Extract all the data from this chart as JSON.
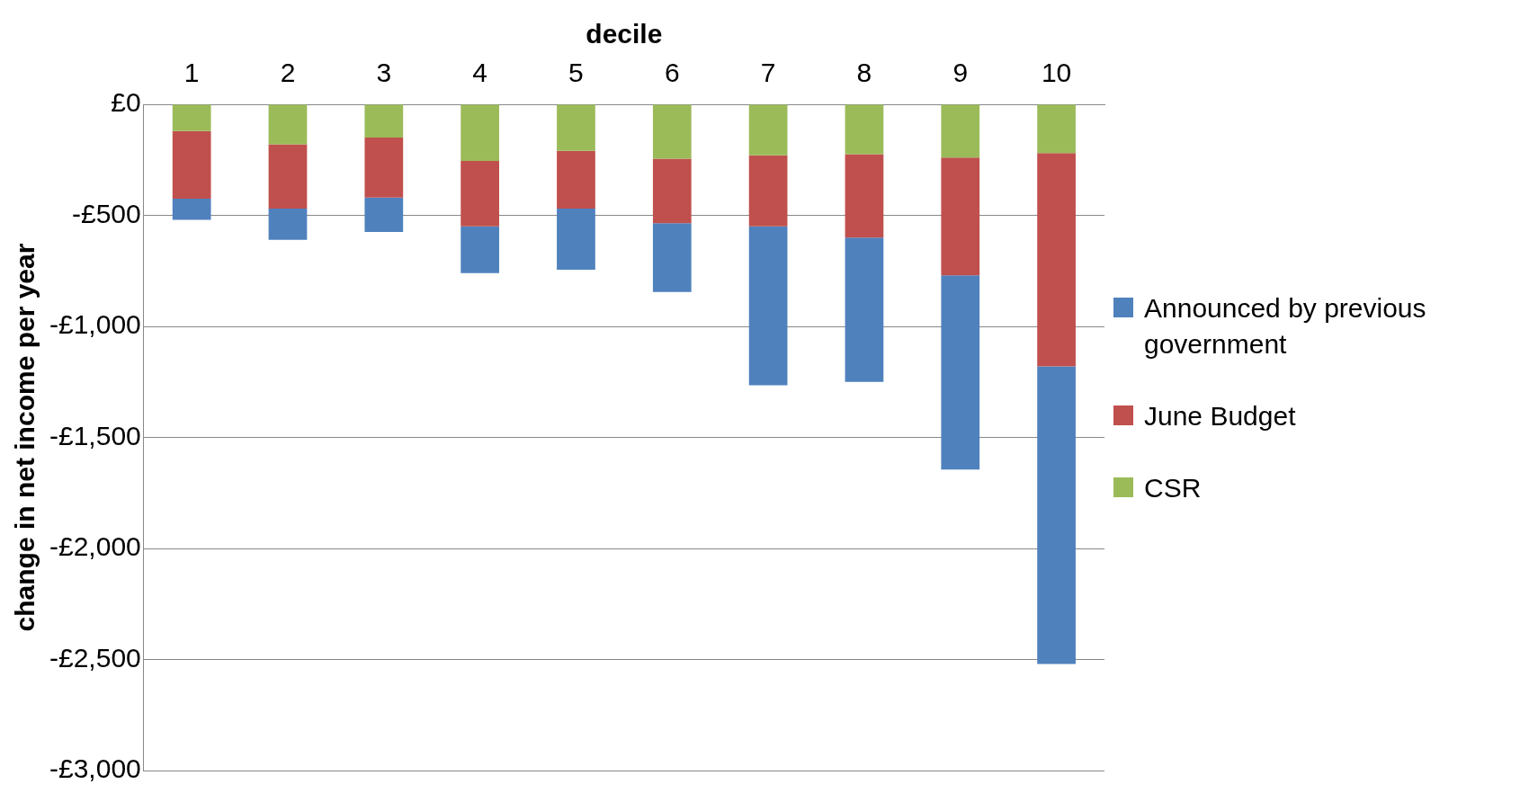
{
  "chart_data": {
    "type": "bar",
    "stacked": true,
    "xlabel": "decile",
    "ylabel": "change in net income per year",
    "categories": [
      "1",
      "2",
      "3",
      "4",
      "5",
      "6",
      "7",
      "8",
      "9",
      "10"
    ],
    "series": [
      {
        "name": "CSR",
        "color": "#9bbb59",
        "values": [
          -120,
          -180,
          -150,
          -255,
          -210,
          -245,
          -230,
          -225,
          -240,
          -220
        ]
      },
      {
        "name": "June Budget",
        "color": "#c0504d",
        "values": [
          -305,
          -290,
          -270,
          -295,
          -260,
          -290,
          -320,
          -375,
          -530,
          -960
        ]
      },
      {
        "name": "Announced by previous government",
        "color": "#4f81bd",
        "values": [
          -95,
          -140,
          -155,
          -210,
          -275,
          -310,
          -715,
          -650,
          -875,
          -1340
        ]
      }
    ],
    "ylim": [
      -3000,
      0
    ],
    "yticks": [
      {
        "value": 0,
        "label": "£0"
      },
      {
        "value": -500,
        "label": "-£500"
      },
      {
        "value": -1000,
        "label": "-£1,000"
      },
      {
        "value": -1500,
        "label": "-£1,500"
      },
      {
        "value": -2000,
        "label": "-£2,000"
      },
      {
        "value": -2500,
        "label": "-£2,500"
      },
      {
        "value": -3000,
        "label": "-£3,000"
      }
    ],
    "grid": "y",
    "legend": "right"
  }
}
